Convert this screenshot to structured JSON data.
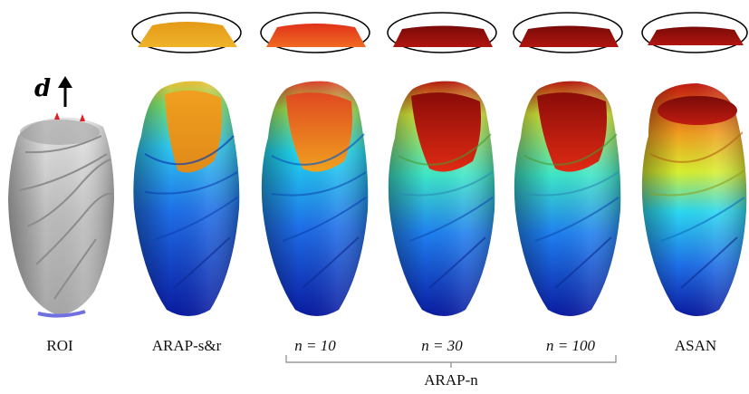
{
  "direction_symbol": "d",
  "panels": [
    {
      "id": "roi",
      "label": "ROI",
      "math": false
    },
    {
      "id": "arap-sr",
      "label": "ARAP-s&r",
      "math": false
    },
    {
      "id": "arap-n10",
      "label": "n = 10",
      "math": true
    },
    {
      "id": "arap-n30",
      "label": "n = 30",
      "math": true
    },
    {
      "id": "arap-n100",
      "label": "n = 100",
      "math": true
    },
    {
      "id": "asan",
      "label": "ASAN",
      "math": false
    }
  ],
  "group_label": "ARAP-n",
  "colors": {
    "roi_gray": "#b9b9b9",
    "handle_red": "#e02020",
    "anchor_blue": "#7070e0",
    "colormap": [
      "#0a1aa0",
      "#1f6fe8",
      "#22d8f0",
      "#c9ef3a",
      "#f0b020",
      "#d33a12",
      "#7a0a08"
    ]
  }
}
